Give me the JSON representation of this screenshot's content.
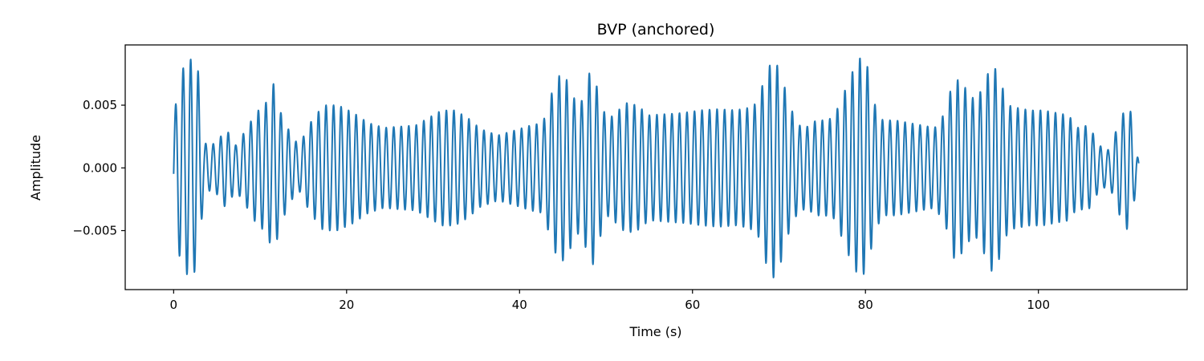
{
  "chart_data": {
    "type": "line",
    "title": "BVP (anchored)",
    "xlabel": "Time (s)",
    "ylabel": "Amplitude",
    "xlim": [
      -5.6,
      117.2
    ],
    "ylim": [
      -0.0097,
      0.0098
    ],
    "xticks": [
      0,
      20,
      40,
      60,
      80,
      100
    ],
    "xtick_labels": [
      "0",
      "20",
      "40",
      "60",
      "80",
      "100"
    ],
    "yticks": [
      -0.005,
      0.0,
      0.005
    ],
    "ytick_labels": [
      "−0.005",
      "0.000",
      "0.005"
    ],
    "grid": false,
    "line_color": "#1f77b4",
    "series": [
      {
        "x_start": 0,
        "x_end": 111.6,
        "approx_frequency_hz": 1.15,
        "envelope": {
          "t": [
            0,
            0.8,
            1.8,
            2.8,
            3.5,
            4.3,
            5.2,
            6.0,
            7.2,
            8.5,
            9.5,
            10.6,
            11.6,
            12.4,
            13.6,
            14.5,
            15.8,
            17.3,
            19.0,
            20.8,
            22.5,
            24.3,
            26.0,
            28.0,
            29.5,
            31.0,
            32.5,
            34.0,
            35.5,
            37.5,
            39.5,
            41.3,
            42.7,
            44.0,
            44.8,
            45.7,
            46.5,
            47.3,
            48.3,
            49.2,
            50.1,
            51.0,
            52.3,
            53.6,
            55.0,
            57.0,
            59.0,
            61.0,
            63.0,
            65.0,
            66.5,
            67.5,
            68.5,
            69.4,
            70.3,
            71.2,
            72.3,
            73.3,
            74.3,
            75.3,
            76.3,
            77.3,
            78.3,
            79.3,
            80.2,
            81.0,
            82.0,
            83.5,
            85.0,
            86.5,
            88.0,
            89.2,
            90.2,
            91.2,
            92.2,
            93.0,
            93.7,
            94.7,
            95.5,
            96.5,
            97.5,
            99.0,
            100.5,
            102.0,
            103.5,
            104.5,
            105.3,
            106.0,
            107.0,
            108.2,
            109.5,
            110.5,
            111.0,
            111.6
          ],
          "a": [
            0.004,
            0.0076,
            0.0088,
            0.008,
            0.002,
            0.0018,
            0.0022,
            0.0032,
            0.0018,
            0.0032,
            0.0044,
            0.0051,
            0.0068,
            0.0044,
            0.0026,
            0.0018,
            0.0036,
            0.005,
            0.005,
            0.0044,
            0.0036,
            0.0032,
            0.0033,
            0.0034,
            0.004,
            0.0046,
            0.0046,
            0.004,
            0.0031,
            0.0026,
            0.003,
            0.0034,
            0.0036,
            0.0066,
            0.0076,
            0.0068,
            0.0052,
            0.0054,
            0.0082,
            0.0058,
            0.0038,
            0.0043,
            0.0052,
            0.005,
            0.0042,
            0.0043,
            0.0044,
            0.0046,
            0.0047,
            0.0046,
            0.0048,
            0.0052,
            0.0076,
            0.0088,
            0.0074,
            0.005,
            0.0034,
            0.0033,
            0.0038,
            0.0038,
            0.004,
            0.0056,
            0.0074,
            0.0088,
            0.0082,
            0.0052,
            0.0038,
            0.0038,
            0.0036,
            0.0034,
            0.0032,
            0.0044,
            0.0072,
            0.0068,
            0.0056,
            0.0056,
            0.0068,
            0.0084,
            0.0072,
            0.005,
            0.0048,
            0.0046,
            0.0046,
            0.0044,
            0.0042,
            0.0032,
            0.0034,
            0.0032,
            0.0018,
            0.0014,
            0.004,
            0.0052,
            0.003,
            0.0004
          ]
        }
      }
    ]
  }
}
